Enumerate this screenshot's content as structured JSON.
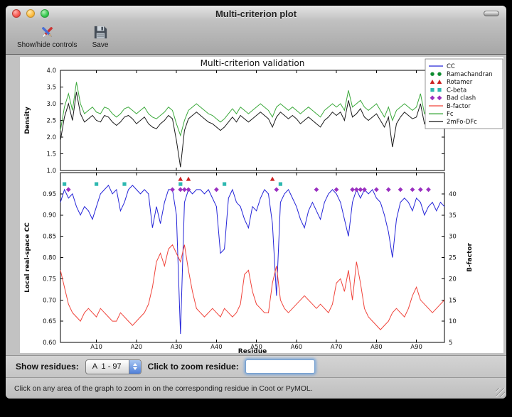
{
  "window": {
    "title": "Multi-criterion plot"
  },
  "toolbar": {
    "items": [
      {
        "label": "Show/hide controls",
        "icon": "show-hide-controls-icon"
      },
      {
        "label": "Save",
        "icon": "save-icon"
      }
    ]
  },
  "controls": {
    "show_residues_label": "Show residues:",
    "residue_range_value": "A  1 - 97",
    "zoom_label": "Click to zoom residue:",
    "zoom_input_value": ""
  },
  "status_bar": {
    "text": "Click on any area of the graph to zoom in on the corresponding residue in Coot or PyMOL."
  },
  "chart_data": {
    "type": "line",
    "title": "Multi-criterion validation",
    "x_start": 1,
    "x_end": 97,
    "top": {
      "ylabel": "Density",
      "ylim": [
        1.0,
        4.0
      ],
      "yticks": [
        1.0,
        1.5,
        2.0,
        2.5,
        3.0,
        3.5,
        4.0
      ],
      "ytick_labels": [
        "1.0",
        "1.5",
        "2.0",
        "2.5",
        "3.0",
        "3.5",
        "4.0"
      ],
      "series": [
        {
          "name": "Fc",
          "color": "#3aa83a",
          "values": [
            2.2,
            2.9,
            3.3,
            2.8,
            3.65,
            3.0,
            2.7,
            2.8,
            2.9,
            2.75,
            2.7,
            2.9,
            2.85,
            2.7,
            2.6,
            2.7,
            2.85,
            2.9,
            2.8,
            2.7,
            2.8,
            2.9,
            2.7,
            2.6,
            2.55,
            2.65,
            2.75,
            2.9,
            2.8,
            2.4,
            2.05,
            2.5,
            2.8,
            2.9,
            3.0,
            2.9,
            2.8,
            2.7,
            2.65,
            2.55,
            2.45,
            2.55,
            2.7,
            2.85,
            2.7,
            2.9,
            2.8,
            2.7,
            2.8,
            2.9,
            3.0,
            2.9,
            2.8,
            2.6,
            2.9,
            3.0,
            2.9,
            2.8,
            2.9,
            2.8,
            2.7,
            2.8,
            2.9,
            2.8,
            2.7,
            2.6,
            2.8,
            2.9,
            3.0,
            2.9,
            3.0,
            2.8,
            3.4,
            2.9,
            3.0,
            3.1,
            2.9,
            2.8,
            2.9,
            3.0,
            2.8,
            2.6,
            2.9,
            2.5,
            2.8,
            2.9,
            3.0,
            2.9,
            2.8,
            2.9,
            3.3,
            2.7,
            2.9,
            3.5,
            2.6,
            3.0,
            3.2
          ]
        },
        {
          "name": "2mFo-DFc",
          "color": "#1a1a1a",
          "values": [
            1.9,
            2.6,
            3.0,
            2.5,
            3.35,
            2.7,
            2.45,
            2.55,
            2.65,
            2.5,
            2.45,
            2.65,
            2.6,
            2.45,
            2.35,
            2.45,
            2.6,
            2.65,
            2.55,
            2.4,
            2.5,
            2.6,
            2.4,
            2.3,
            2.25,
            2.4,
            2.5,
            2.65,
            2.55,
            1.9,
            1.1,
            2.2,
            2.55,
            2.65,
            2.75,
            2.65,
            2.55,
            2.45,
            2.4,
            2.3,
            2.2,
            2.3,
            2.45,
            2.6,
            2.45,
            2.65,
            2.55,
            2.45,
            2.55,
            2.65,
            2.75,
            2.65,
            2.55,
            2.3,
            2.6,
            2.75,
            2.65,
            2.55,
            2.65,
            2.55,
            2.4,
            2.5,
            2.6,
            2.5,
            2.4,
            2.3,
            2.5,
            2.6,
            2.75,
            2.65,
            2.75,
            2.5,
            3.1,
            2.6,
            2.7,
            2.85,
            2.6,
            2.5,
            2.6,
            2.7,
            2.5,
            2.3,
            2.6,
            1.7,
            2.4,
            2.6,
            2.75,
            2.65,
            2.55,
            2.6,
            3.0,
            2.4,
            2.6,
            3.2,
            2.3,
            2.7,
            2.9
          ]
        }
      ]
    },
    "bottom": {
      "ylabel": "Local real-space CC",
      "ylim": [
        0.6,
        1.0
      ],
      "yticks": [
        0.6,
        0.65,
        0.7,
        0.75,
        0.8,
        0.85,
        0.9,
        0.95
      ],
      "ytick_labels": [
        "0.60",
        "0.65",
        "0.70",
        "0.75",
        "0.80",
        "0.85",
        "0.90",
        "0.95"
      ],
      "y2label": "B-factor",
      "y2lim": [
        5,
        45
      ],
      "y2ticks": [
        5,
        10,
        15,
        20,
        25,
        30,
        35,
        40
      ],
      "y2tick_labels": [
        "5",
        "10",
        "15",
        "20",
        "25",
        "30",
        "35",
        "40"
      ],
      "xlabel": "Residue",
      "xticks": [
        10,
        20,
        30,
        40,
        50,
        60,
        70,
        80,
        90
      ],
      "xtick_labels": [
        "A10",
        "A20",
        "A30",
        "A40",
        "A50",
        "A60",
        "A70",
        "A80",
        "A90"
      ],
      "series": [
        {
          "name": "CC",
          "color": "#2525d8",
          "axis": "y1",
          "values": [
            0.93,
            0.96,
            0.94,
            0.95,
            0.92,
            0.9,
            0.92,
            0.91,
            0.89,
            0.92,
            0.95,
            0.96,
            0.97,
            0.95,
            0.96,
            0.91,
            0.93,
            0.96,
            0.97,
            0.96,
            0.95,
            0.96,
            0.95,
            0.87,
            0.92,
            0.88,
            0.93,
            0.96,
            0.96,
            0.9,
            0.62,
            0.93,
            0.96,
            0.95,
            0.96,
            0.96,
            0.95,
            0.96,
            0.94,
            0.92,
            0.81,
            0.82,
            0.94,
            0.96,
            0.93,
            0.92,
            0.89,
            0.87,
            0.92,
            0.91,
            0.94,
            0.96,
            0.95,
            0.88,
            0.71,
            0.93,
            0.95,
            0.96,
            0.94,
            0.92,
            0.89,
            0.87,
            0.91,
            0.93,
            0.91,
            0.89,
            0.93,
            0.95,
            0.96,
            0.95,
            0.93,
            0.89,
            0.85,
            0.93,
            0.96,
            0.94,
            0.96,
            0.95,
            0.96,
            0.94,
            0.93,
            0.9,
            0.86,
            0.8,
            0.89,
            0.93,
            0.94,
            0.93,
            0.91,
            0.94,
            0.93,
            0.9,
            0.92,
            0.93,
            0.91,
            0.93,
            0.92
          ]
        },
        {
          "name": "B-factor",
          "color": "#f0443b",
          "axis": "y2",
          "values": [
            22,
            18,
            14,
            12,
            11,
            10,
            12,
            13,
            12,
            11,
            13,
            12,
            11,
            10,
            10,
            12,
            11,
            10,
            9,
            10,
            11,
            12,
            14,
            18,
            24,
            26,
            23,
            27,
            28,
            26,
            24,
            28,
            22,
            17,
            13,
            12,
            11,
            12,
            13,
            12,
            11,
            13,
            12,
            11,
            12,
            14,
            21,
            22,
            17,
            14,
            13,
            12,
            12,
            19,
            23,
            15,
            13,
            12,
            13,
            14,
            15,
            16,
            15,
            14,
            13,
            14,
            13,
            12,
            14,
            19,
            20,
            17,
            22,
            15,
            24,
            19,
            13,
            11,
            10,
            9,
            8,
            9,
            10,
            12,
            13,
            12,
            11,
            13,
            16,
            18,
            15,
            14,
            13,
            12,
            13,
            14,
            15
          ]
        }
      ],
      "markers": [
        {
          "name": "Ramachandran",
          "shape": "circle",
          "color": "#0e8c2f",
          "y": 0.973,
          "positions": []
        },
        {
          "name": "Rotamer",
          "shape": "triangle",
          "color": "#cc2222",
          "y": 0.985,
          "positions": [
            31,
            33,
            54
          ]
        },
        {
          "name": "C-beta",
          "shape": "square",
          "color": "#2fb8b0",
          "y": 0.973,
          "positions": [
            2,
            10,
            17,
            31,
            42,
            56
          ]
        },
        {
          "name": "Bad clash",
          "shape": "diamond",
          "color": "#9a30c0",
          "y": 0.96,
          "positions": [
            3,
            29,
            31,
            32,
            33,
            40,
            55,
            65,
            70,
            74,
            75,
            76,
            77,
            80,
            83,
            86,
            89,
            91,
            93
          ]
        }
      ]
    },
    "legend": [
      {
        "label": "CC",
        "glyph": "line",
        "color": "#2525d8"
      },
      {
        "label": "Ramachandran",
        "glyph": "circle",
        "color": "#0e8c2f"
      },
      {
        "label": "Rotamer",
        "glyph": "triangle",
        "color": "#cc2222"
      },
      {
        "label": "C-beta",
        "glyph": "square",
        "color": "#2fb8b0"
      },
      {
        "label": "Bad clash",
        "glyph": "diamond",
        "color": "#9a30c0"
      },
      {
        "label": "B-factor",
        "glyph": "line",
        "color": "#f0443b"
      },
      {
        "label": "Fc",
        "glyph": "line",
        "color": "#3aa83a"
      },
      {
        "label": "2mFo-DFc",
        "glyph": "line",
        "color": "#1a1a1a"
      }
    ]
  }
}
